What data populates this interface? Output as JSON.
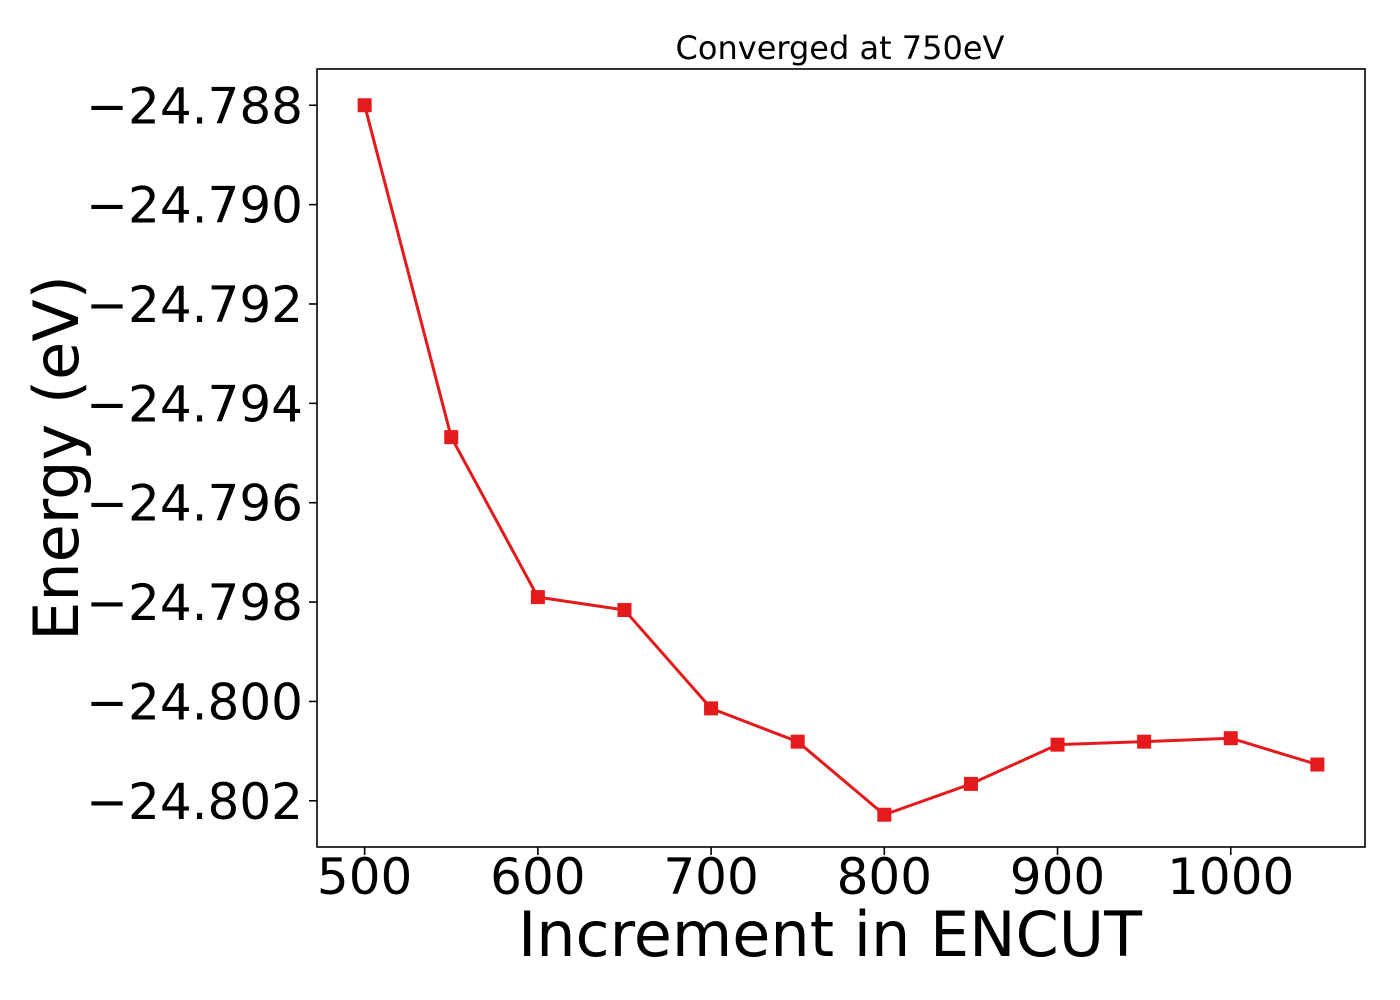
{
  "chart_data": {
    "type": "line",
    "title": "Converged at 750eV",
    "xlabel": "Increment in ENCUT",
    "ylabel": "Energy (eV)",
    "xlim": [
      472.5,
      1077.5
    ],
    "ylim": [
      -24.80293,
      -24.78727
    ],
    "xticks": [
      500,
      600,
      700,
      800,
      900,
      1000
    ],
    "xtick_labels": [
      "500",
      "600",
      "700",
      "800",
      "900",
      "1000"
    ],
    "yticks": [
      -24.788,
      -24.79,
      -24.792,
      -24.794,
      -24.796,
      -24.798,
      -24.8,
      -24.802
    ],
    "ytick_labels": [
      "−24.788",
      "−24.790",
      "−24.792",
      "−24.794",
      "−24.796",
      "−24.798",
      "−24.800",
      "−24.802"
    ],
    "grid": false,
    "series": [
      {
        "color": "#e41a1c",
        "marker": "square",
        "x": [
          500,
          550,
          600,
          650,
          700,
          750,
          800,
          850,
          900,
          950,
          1000,
          1050
        ],
        "y": [
          -24.788,
          -24.79468,
          -24.7979,
          -24.79816,
          -24.80014,
          -24.80081,
          -24.80228,
          -24.80166,
          -24.80087,
          -24.80081,
          -24.80074,
          -24.80127
        ]
      }
    ]
  }
}
